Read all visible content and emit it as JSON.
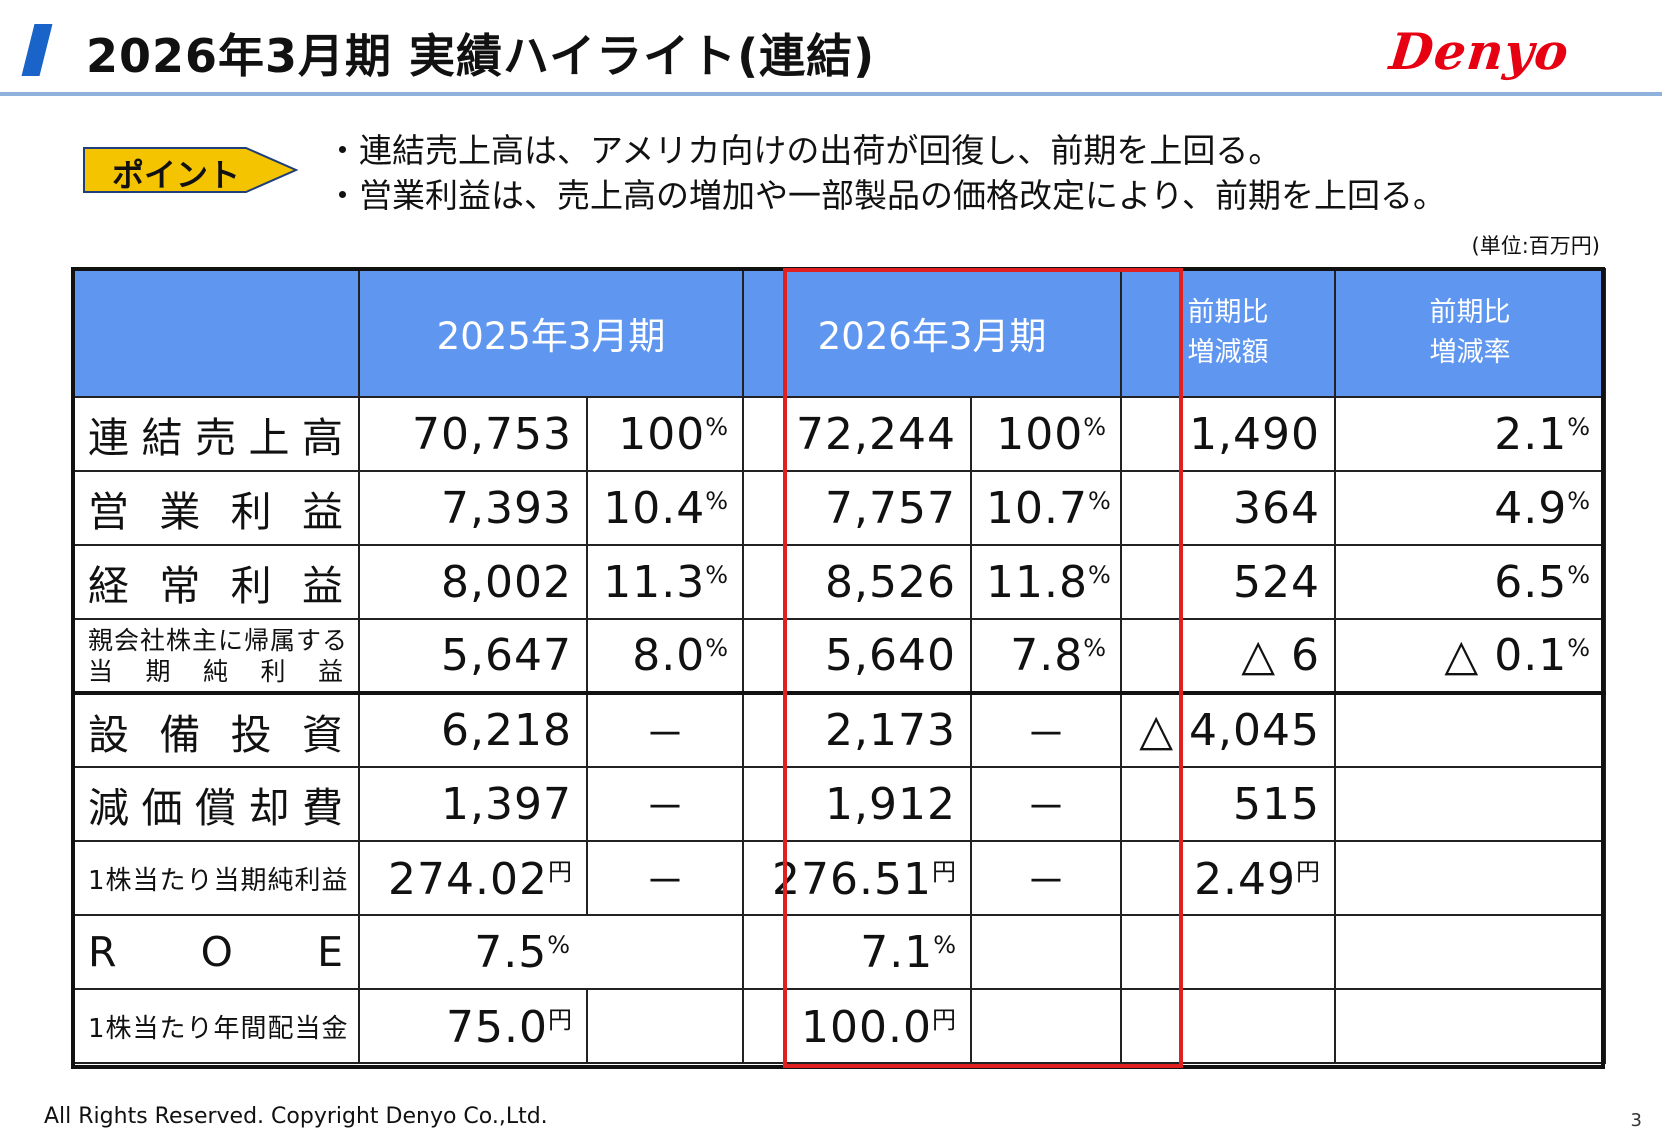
{
  "header": {
    "title": "2026年3月期 実績ハイライト(連結)",
    "logo": "Denyo"
  },
  "point": {
    "label": "ポイント",
    "bullets": [
      "・連結売上高は、アメリカ向けの出荷が回復し、前期を上回る。",
      "・営業利益は、売上高の増加や一部製品の価格改定により、前期を上回る。"
    ]
  },
  "unit": "(単位:百万円)",
  "table": {
    "headers": [
      "2025年3月期",
      "2026年3月期",
      "前期比",
      "増減額",
      "前期比",
      "増減率"
    ],
    "rows": {
      "sales": {
        "l": [
          "連",
          "結",
          "売",
          "上",
          "高"
        ],
        "a": "70,753",
        "b": "100",
        "c": "72,244",
        "d": "100",
        "e": "1,490",
        "f": "2.1"
      },
      "op": {
        "l": [
          "営",
          "業",
          "利",
          "益"
        ],
        "a": "7,393",
        "b": "10.4",
        "c": "7,757",
        "d": "10.7",
        "e": "364",
        "f": "4.9"
      },
      "ord": {
        "l": [
          "経",
          "常",
          "利",
          "益"
        ],
        "a": "8,002",
        "b": "11.3",
        "c": "8,526",
        "d": "11.8",
        "e": "524",
        "f": "6.5"
      },
      "net": {
        "l1": "親会社株主に帰属する",
        "l2": [
          "当",
          "期",
          "純",
          "利",
          "益"
        ],
        "a": "5,647",
        "b": "8.0",
        "c": "5,640",
        "d": "7.8",
        "e": "△ 6",
        "f": "△ 0.1"
      },
      "capex": {
        "l": [
          "設",
          "備",
          "投",
          "資"
        ],
        "a": "6,218",
        "b": "－",
        "c": "2,173",
        "d": "－",
        "e": "△ 4,045"
      },
      "dep": {
        "l": [
          "減",
          "価",
          "償",
          "却",
          "費"
        ],
        "a": "1,397",
        "b": "－",
        "c": "1,912",
        "d": "－",
        "e": "515"
      },
      "eps": {
        "l": "1株当たり当期純利益",
        "a": "274.02",
        "b": "－",
        "c": "276.51",
        "d": "－",
        "e": "2.49"
      },
      "roe": {
        "l": [
          "R",
          "O",
          "E"
        ],
        "a": "7.5",
        "c": "7.1"
      },
      "div": {
        "l": "1株当たり年間配当金",
        "a": "75.0",
        "c": "100.0"
      }
    },
    "pct_suffix": "%",
    "yen_suffix": "円"
  },
  "footer": {
    "copyright": "All Rights Reserved. Copyright Denyo Co.,Ltd.",
    "page": "3"
  },
  "colors": {
    "header_bg": "#5f96f0",
    "accent_red": "#e02020",
    "logo_red": "#e60012",
    "point_fill": "#f5c400",
    "title_slash": "#1a63c8"
  }
}
